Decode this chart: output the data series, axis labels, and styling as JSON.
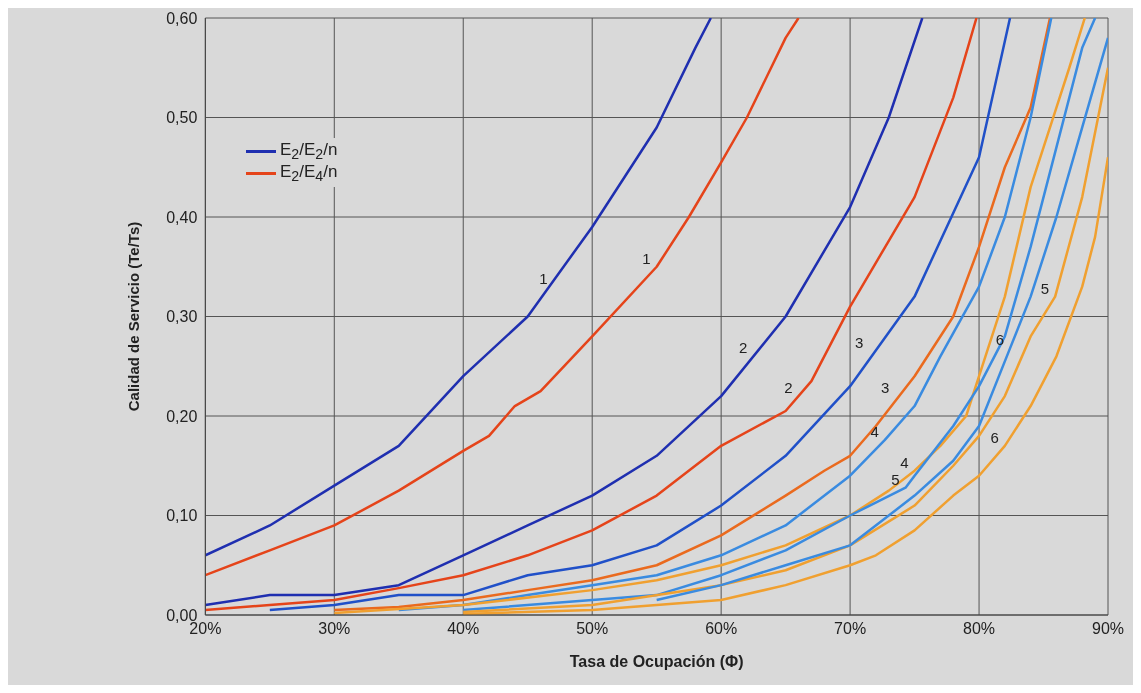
{
  "chart_data": {
    "type": "line",
    "xlabel": "Tasa de Ocupación (Φ)",
    "ylabel": "Calidad de Servicio (Te/Ts)",
    "xlim": [
      20,
      90
    ],
    "ylim": [
      0,
      0.6
    ],
    "xticks": [
      {
        "value": 20,
        "label": "20%"
      },
      {
        "value": 30,
        "label": "30%"
      },
      {
        "value": 40,
        "label": "40%"
      },
      {
        "value": 50,
        "label": "50%"
      },
      {
        "value": 60,
        "label": "60%"
      },
      {
        "value": 70,
        "label": "70%"
      },
      {
        "value": 80,
        "label": "80%"
      },
      {
        "value": 90,
        "label": "90%"
      }
    ],
    "yticks": [
      {
        "value": 0,
        "label": "0,00"
      },
      {
        "value": 0.1,
        "label": "0,10"
      },
      {
        "value": 0.2,
        "label": "0,20"
      },
      {
        "value": 0.3,
        "label": "0,30"
      },
      {
        "value": 0.4,
        "label": "0,40"
      },
      {
        "value": 0.5,
        "label": "0,50"
      },
      {
        "value": 0.6,
        "label": "0,60"
      }
    ],
    "grid": true,
    "legend": "top left",
    "marker": "none",
    "line_style": "solid",
    "series": [
      {
        "name": "E$_{2}$/E$_{2}$/n",
        "color": "#1f2fb0",
        "x": [
          20,
          25,
          30,
          35,
          40,
          45,
          50,
          55,
          58,
          59.2
        ],
        "values": [
          0.06,
          0.09,
          0.13,
          0.17,
          0.24,
          0.3,
          0.39,
          0.49,
          0.57,
          0.6
        ]
      },
      {
        "name": "E$_{2}$/E$_{4}$/n",
        "color": "#e5441a",
        "x": [
          20,
          25,
          30,
          35,
          40,
          42,
          44,
          46,
          50,
          55,
          57.5,
          60,
          62,
          65,
          66
        ],
        "values": [
          0.04,
          0.065,
          0.09,
          0.125,
          0.165,
          0.18,
          0.21,
          0.225,
          0.28,
          0.35,
          0.4,
          0.455,
          0.5,
          0.58,
          0.6
        ]
      },
      {
        "color": "#1f2fb0",
        "x": [
          20,
          25,
          30,
          35,
          40,
          45,
          50,
          55,
          60,
          65,
          70,
          73,
          75.6
        ],
        "values": [
          0.01,
          0.02,
          0.02,
          0.03,
          0.06,
          0.09,
          0.12,
          0.16,
          0.22,
          0.3,
          0.41,
          0.5,
          0.6
        ]
      },
      {
        "color": "#e5441a",
        "x": [
          20,
          25,
          30,
          35,
          40,
          45,
          50,
          55,
          60,
          65,
          67,
          70,
          75,
          78,
          79.8
        ],
        "values": [
          0.005,
          0.01,
          0.015,
          0.027,
          0.04,
          0.06,
          0.085,
          0.12,
          0.17,
          0.205,
          0.235,
          0.31,
          0.42,
          0.52,
          0.6
        ]
      },
      {
        "color": "#2050c8",
        "x": [
          25,
          30,
          35,
          40,
          45,
          50,
          55,
          60,
          65,
          70,
          75,
          80,
          82.4
        ],
        "values": [
          0.005,
          0.01,
          0.02,
          0.02,
          0.04,
          0.05,
          0.07,
          0.11,
          0.16,
          0.23,
          0.32,
          0.46,
          0.6
        ]
      },
      {
        "color": "#ea6a1e",
        "x": [
          30,
          35,
          40,
          45,
          50,
          55,
          60,
          65,
          68,
          70,
          72,
          75,
          78,
          80,
          82,
          84,
          85.5
        ],
        "values": [
          0.005,
          0.008,
          0.015,
          0.025,
          0.035,
          0.05,
          0.08,
          0.12,
          0.145,
          0.16,
          0.19,
          0.24,
          0.3,
          0.37,
          0.45,
          0.51,
          0.6
        ]
      },
      {
        "color": "#3a8be0",
        "x": [
          35,
          40,
          45,
          50,
          55,
          60,
          65,
          70,
          72.7,
          75,
          77,
          80,
          82,
          84,
          85.6
        ],
        "values": [
          0.005,
          0.01,
          0.02,
          0.03,
          0.04,
          0.06,
          0.09,
          0.14,
          0.176,
          0.21,
          0.26,
          0.33,
          0.4,
          0.5,
          0.6
        ]
      },
      {
        "color": "#f0a030",
        "x": [
          30,
          40,
          50,
          55,
          60,
          65,
          70,
          73,
          75,
          77,
          79,
          80,
          82,
          84,
          86,
          87,
          88.2
        ],
        "values": [
          0.002,
          0.01,
          0.025,
          0.035,
          0.05,
          0.07,
          0.1,
          0.125,
          0.145,
          0.17,
          0.2,
          0.24,
          0.32,
          0.43,
          0.51,
          0.55,
          0.6
        ]
      },
      {
        "color": "#3a8be0",
        "x": [
          40,
          50,
          55,
          60,
          65,
          70,
          74.3,
          75,
          78,
          80,
          82,
          84,
          86,
          88,
          89
        ],
        "values": [
          0.005,
          0.015,
          0.02,
          0.04,
          0.065,
          0.1,
          0.128,
          0.14,
          0.19,
          0.23,
          0.28,
          0.37,
          0.47,
          0.57,
          0.6
        ]
      },
      {
        "color": "#f0a030",
        "x": [
          40,
          50,
          60,
          65,
          70,
          75,
          78,
          80,
          82,
          84,
          85.9,
          88,
          90
        ],
        "values": [
          0.003,
          0.01,
          0.03,
          0.045,
          0.07,
          0.11,
          0.15,
          0.18,
          0.22,
          0.28,
          0.32,
          0.42,
          0.55
        ]
      },
      {
        "color": "#3a8be0",
        "x": [
          55,
          60,
          65,
          70,
          75,
          78,
          80,
          82.4,
          84,
          86,
          88,
          90
        ],
        "values": [
          0.015,
          0.03,
          0.05,
          0.07,
          0.12,
          0.155,
          0.19,
          0.268,
          0.32,
          0.4,
          0.49,
          0.58
        ]
      },
      {
        "color": "#f0a030",
        "x": [
          40,
          50,
          60,
          65,
          70,
          72,
          75,
          78,
          80,
          82,
          84,
          86,
          88,
          89,
          90
        ],
        "values": [
          0.001,
          0.005,
          0.015,
          0.03,
          0.05,
          0.06,
          0.085,
          0.12,
          0.14,
          0.17,
          0.21,
          0.26,
          0.33,
          0.38,
          0.46
        ]
      }
    ],
    "annotations": [
      {
        "text": "1",
        "x": 47,
        "y": 0.33
      },
      {
        "text": "1",
        "x": 55,
        "y": 0.35
      },
      {
        "text": "2",
        "x": 62.5,
        "y": 0.26
      },
      {
        "text": "2",
        "x": 66,
        "y": 0.22
      },
      {
        "text": "3",
        "x": 71.5,
        "y": 0.265
      },
      {
        "text": "3",
        "x": 73.5,
        "y": 0.22
      },
      {
        "text": "4",
        "x": 72.7,
        "y": 0.176
      },
      {
        "text": "4",
        "x": 75,
        "y": 0.145
      },
      {
        "text": "5",
        "x": 74.3,
        "y": 0.128
      },
      {
        "text": "5",
        "x": 85.9,
        "y": 0.32
      },
      {
        "text": "6",
        "x": 82.4,
        "y": 0.268
      },
      {
        "text": "6",
        "x": 82,
        "y": 0.17
      }
    ]
  }
}
